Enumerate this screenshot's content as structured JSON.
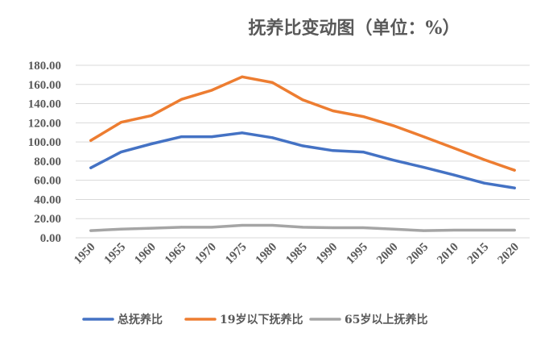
{
  "chart_data": {
    "type": "line",
    "title": "抚养比变动图（单位：%）",
    "categories": [
      "1950",
      "1955",
      "1960",
      "1965",
      "1970",
      "1975",
      "1980",
      "1985",
      "1990",
      "1995",
      "2000",
      "2005",
      "2010",
      "2015",
      "2020"
    ],
    "ylim": [
      0,
      180
    ],
    "yticks": [
      "0.00",
      "20.00",
      "40.00",
      "60.00",
      "80.00",
      "100.00",
      "120.00",
      "140.00",
      "160.00",
      "180.00"
    ],
    "grid": true,
    "legend_position": "bottom",
    "series": [
      {
        "name": "总抚养比",
        "color": "#4472c4",
        "values": [
          73,
          89.5,
          98,
          105.5,
          105.5,
          109.5,
          104.5,
          96,
          91,
          89.5,
          81,
          73.5,
          65.5,
          57,
          52
        ]
      },
      {
        "name": "19岁以下抚养比",
        "color": "#ed7d31",
        "values": [
          101.5,
          120.5,
          127.5,
          144.5,
          154,
          168,
          162,
          144,
          132.5,
          126.5,
          117,
          105.5,
          93.5,
          81.5,
          70.5
        ]
      },
      {
        "name": "65岁以上抚养比",
        "color": "#a5a5a5",
        "values": [
          7.5,
          9,
          10,
          11,
          11,
          13,
          13,
          11,
          10.5,
          10.5,
          9,
          7.5,
          8,
          8,
          8
        ]
      }
    ]
  }
}
